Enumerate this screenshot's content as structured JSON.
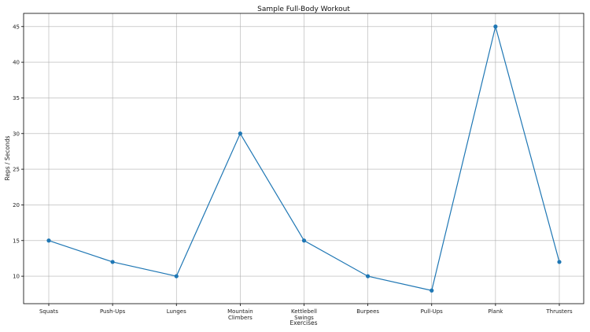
{
  "chart_data": {
    "type": "line",
    "title": "Sample Full-Body Workout",
    "xlabel": "Exercises",
    "ylabel": "Reps / Seconds",
    "categories": [
      "Squats",
      "Push-Ups",
      "Lunges",
      "Mountain Climbers",
      "Kettlebell Swings",
      "Burpees",
      "Pull-Ups",
      "Plank",
      "Thrusters"
    ],
    "category_lines": [
      [
        "Squats"
      ],
      [
        "Push-Ups"
      ],
      [
        "Lunges"
      ],
      [
        "Mountain",
        "Climbers"
      ],
      [
        "Kettlebell",
        "Swings"
      ],
      [
        "Burpees"
      ],
      [
        "Pull-Ups"
      ],
      [
        "Plank"
      ],
      [
        "Thrusters"
      ]
    ],
    "series": [
      {
        "values": [
          15,
          12,
          10,
          30,
          15,
          10,
          8,
          45,
          12
        ],
        "color": "#1f77b4",
        "marker": "circle"
      }
    ],
    "ylim": [
      6.15,
      46.85
    ],
    "yticks": [
      10,
      15,
      20,
      25,
      30,
      35,
      40,
      45
    ],
    "grid": true
  }
}
